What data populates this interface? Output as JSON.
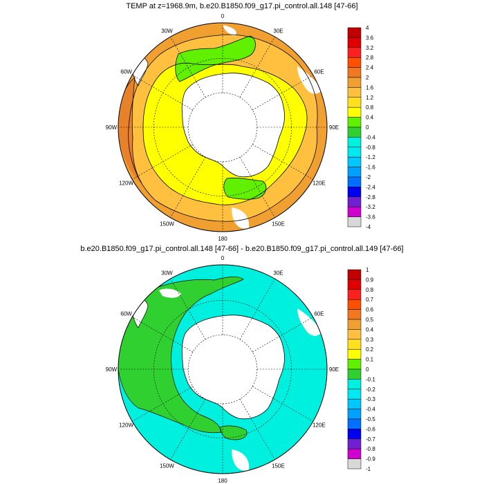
{
  "panels": [
    {
      "title": "TEMP at z=1968.9m, b.e20.B1850.f09_g17.pi_control.all.148 [47-66]",
      "lon_labels": [
        "0",
        "30E",
        "60E",
        "90E",
        "120E",
        "150E",
        "180",
        "150W",
        "120W",
        "90W",
        "60W",
        "30W"
      ],
      "colorbar": {
        "labels": [
          "4",
          "3.6",
          "3.2",
          "2.8",
          "2.4",
          "2",
          "1.6",
          "1.2",
          "0.8",
          "0.4",
          "0",
          "-0.4",
          "-0.8",
          "-1.2",
          "-1.6",
          "-2",
          "-2.4",
          "-2.8",
          "-3.2",
          "-3.6",
          "-4"
        ],
        "colors": [
          "#c00000",
          "#e00000",
          "#ff2020",
          "#ff5000",
          "#f07820",
          "#f0a030",
          "#ffc040",
          "#ffe020",
          "#ffff00",
          "#60f000",
          "#30d030",
          "#00f0e0",
          "#00e8f0",
          "#00c8ff",
          "#00a0ff",
          "#0070ff",
          "#0000f0",
          "#7020d0",
          "#d000d0",
          "#d8d8d8",
          "#707070"
        ]
      }
    },
    {
      "title": "b.e20.B1850.f09_g17.pi_control.all.148 [47-66] - b.e20.B1850.f09_g17.pi_control.all.149 [47-66]",
      "lon_labels": [
        "0",
        "30E",
        "60E",
        "90E",
        "120E",
        "150E",
        "180",
        "150W",
        "120W",
        "90W",
        "60W",
        "30W"
      ],
      "colorbar": {
        "labels": [
          "1",
          "0.9",
          "0.8",
          "0.7",
          "0.6",
          "0.5",
          "0.4",
          "0.3",
          "0.2",
          "0.1",
          "0",
          "-0.1",
          "-0.2",
          "-0.3",
          "-0.4",
          "-0.5",
          "-0.6",
          "-0.7",
          "-0.8",
          "-0.9",
          "-1"
        ],
        "colors": [
          "#c00000",
          "#e00000",
          "#ff2020",
          "#ff5000",
          "#f07820",
          "#f0a030",
          "#ffc040",
          "#ffe020",
          "#ffff00",
          "#60f000",
          "#30d030",
          "#00f0e0",
          "#00e8f0",
          "#00c8ff",
          "#00a0ff",
          "#0070ff",
          "#0000f0",
          "#7020d0",
          "#d000d0",
          "#d8d8d8",
          "#707070"
        ]
      }
    }
  ]
}
